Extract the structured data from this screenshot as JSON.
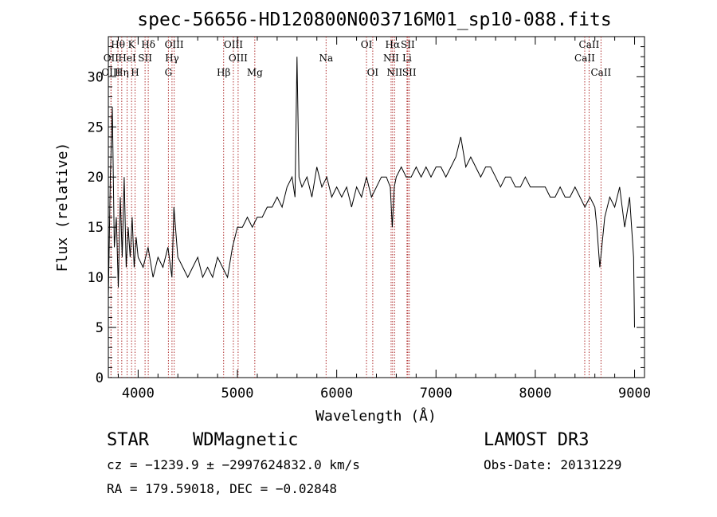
{
  "chart_data": {
    "type": "line",
    "title": "spec-56656-HD120800N003716M01_sp10-088.fits",
    "xlabel": "Wavelength (Å)",
    "ylabel": "Flux (relative)",
    "xlim": [
      3700,
      9100
    ],
    "ylim": [
      0,
      34
    ],
    "x_ticks": [
      "4000",
      "5000",
      "6000",
      "7000",
      "8000",
      "9000"
    ],
    "y_ticks": [
      "0",
      "5",
      "10",
      "15",
      "20",
      "25",
      "30"
    ],
    "series": [
      {
        "x": [
          3700,
          3720,
          3740,
          3760,
          3780,
          3800,
          3820,
          3840,
          3860,
          3880,
          3900,
          3920,
          3940,
          3960,
          3980,
          4000,
          4050,
          4100,
          4150,
          4200,
          4250,
          4300,
          4340,
          4360,
          4400,
          4450,
          4500,
          4550,
          4600,
          4650,
          4700,
          4750,
          4800,
          4850,
          4900,
          4950,
          5000,
          5050,
          5100,
          5150,
          5200,
          5250,
          5300,
          5350,
          5400,
          5450,
          5500,
          5550,
          5580,
          5600,
          5620,
          5650,
          5700,
          5750,
          5800,
          5850,
          5900,
          5950,
          6000,
          6050,
          6100,
          6150,
          6200,
          6250,
          6300,
          6350,
          6400,
          6450,
          6500,
          6540,
          6560,
          6580,
          6600,
          6650,
          6700,
          6750,
          6800,
          6850,
          6900,
          6950,
          7000,
          7050,
          7100,
          7150,
          7200,
          7250,
          7300,
          7350,
          7400,
          7450,
          7500,
          7550,
          7600,
          7650,
          7700,
          7750,
          7800,
          7850,
          7900,
          7950,
          8000,
          8050,
          8100,
          8150,
          8200,
          8250,
          8300,
          8350,
          8400,
          8450,
          8500,
          8550,
          8600,
          8620,
          8650,
          8700,
          8750,
          8800,
          8850,
          8900,
          8950,
          8990,
          9000
        ],
        "y": [
          8,
          20,
          27,
          13,
          16,
          9,
          18,
          12,
          20,
          11,
          15,
          12,
          16,
          11,
          14,
          12,
          11,
          13,
          10,
          12,
          11,
          13,
          10,
          17,
          12,
          11,
          10,
          11,
          12,
          10,
          11,
          10,
          12,
          11,
          10,
          13,
          15,
          15,
          16,
          15,
          16,
          16,
          17,
          17,
          18,
          17,
          19,
          20,
          18,
          32,
          20,
          19,
          20,
          18,
          21,
          19,
          20,
          18,
          19,
          18,
          19,
          17,
          19,
          18,
          20,
          18,
          19,
          20,
          20,
          19,
          15,
          19,
          20,
          21,
          20,
          20,
          21,
          20,
          21,
          20,
          21,
          21,
          20,
          21,
          22,
          24,
          21,
          22,
          21,
          20,
          21,
          21,
          20,
          19,
          20,
          20,
          19,
          19,
          20,
          19,
          19,
          19,
          19,
          18,
          18,
          19,
          18,
          18,
          19,
          18,
          17,
          18,
          17,
          15,
          11,
          16,
          18,
          17,
          19,
          15,
          18,
          12,
          5
        ]
      }
    ],
    "spectral_lines": [
      {
        "label": "Hθ",
        "x": 3797,
        "row": 1
      },
      {
        "label": "OII",
        "x": 3727,
        "row": 2
      },
      {
        "label": "OIII",
        "x": 3727,
        "row": 3
      },
      {
        "label": "K",
        "x": 3934,
        "row": 1
      },
      {
        "label": "HeI",
        "x": 3889,
        "row": 2
      },
      {
        "label": "Hη",
        "x": 3835,
        "row": 3
      },
      {
        "label": "Hδ",
        "x": 4102,
        "row": 1
      },
      {
        "label": "SII",
        "x": 4070,
        "row": 2
      },
      {
        "label": "H",
        "x": 3969,
        "row": 3
      },
      {
        "label": "OIII",
        "x": 4363,
        "row": 1
      },
      {
        "label": "Hγ",
        "x": 4341,
        "row": 2
      },
      {
        "label": "G",
        "x": 4305,
        "row": 3
      },
      {
        "label": "OIII",
        "x": 4959,
        "row": 1
      },
      {
        "label": "OIII",
        "x": 5007,
        "row": 2
      },
      {
        "label": "Hβ",
        "x": 4861,
        "row": 3
      },
      {
        "label": "Mg",
        "x": 5175,
        "row": 3
      },
      {
        "label": "Na",
        "x": 5893,
        "row": 2
      },
      {
        "label": "OI",
        "x": 6300,
        "row": 1
      },
      {
        "label": "OI",
        "x": 6363,
        "row": 3
      },
      {
        "label": "Hα",
        "x": 6563,
        "row": 1
      },
      {
        "label": "NII",
        "x": 6548,
        "row": 2
      },
      {
        "label": "NII",
        "x": 6583,
        "row": 3
      },
      {
        "label": "SII",
        "x": 6716,
        "row": 1
      },
      {
        "label": "Li",
        "x": 6708,
        "row": 2
      },
      {
        "label": "SII",
        "x": 6731,
        "row": 3
      },
      {
        "label": "CaII",
        "x": 8542,
        "row": 1
      },
      {
        "label": "CaII",
        "x": 8498,
        "row": 2
      },
      {
        "label": "CaII",
        "x": 8662,
        "row": 3
      }
    ],
    "grid": false,
    "line_color": "#000000",
    "marker_color": "#b03030"
  },
  "info": {
    "class": "STAR",
    "subclass": "WDMagnetic",
    "survey": "LAMOST DR3",
    "cz": "cz = −1239.9 ± −2997624832.0 km/s",
    "obs_date": "Obs-Date: 20131229",
    "coords": "RA = 179.59018, DEC =  −0.02848"
  }
}
